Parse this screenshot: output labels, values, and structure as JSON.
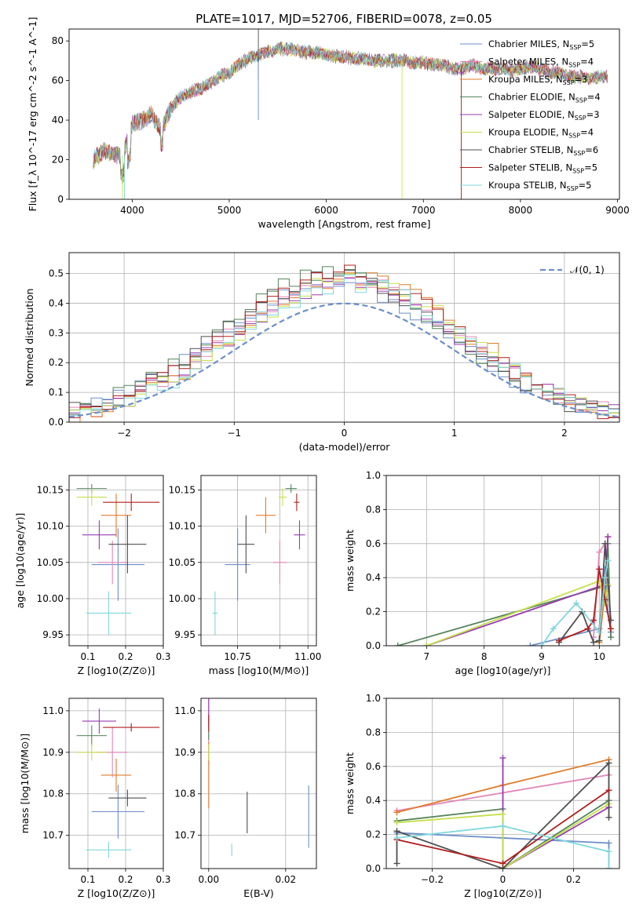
{
  "figure": {
    "title": "PLATE=1017, MJD=52706, FIBERID=0078, z=0.05",
    "legend_labels": [
      "Chabrier MILES, N_SSP=5",
      "Salpeter MILES, N_SSP=4",
      "Kroupa MILES, N_SSP=3",
      "Chabrier ELODIE, N_SSP=4",
      "Salpeter ELODIE, N_SSP=3",
      "Kroupa ELODIE, N_SSP=4",
      "Chabrier STELIB, N_SSP=6",
      "Salpeter STELIB, N_SSP=5",
      "Kroupa STELIB, N_SSP=5"
    ],
    "series_colors": [
      "#6c8fc9",
      "#e387b9",
      "#e07b2a",
      "#55835a",
      "#9a3bb0",
      "#c5e04c",
      "#4f4f4f",
      "#b01e1e",
      "#80d7dc"
    ],
    "normal_label": "𝒩(0, 1)",
    "normal_color": "#6c8fc9"
  },
  "chart_data": [
    {
      "type": "line",
      "name": "spectrum",
      "xlabel": "wavelength [Angstrom, rest frame]",
      "ylabel": "Flux [f_λ 10^-17 erg cm^-2 s^-1 A^-1]",
      "xlim": [
        3350,
        9020
      ],
      "ylim": [
        0,
        86
      ],
      "xticks": [
        4000,
        5000,
        6000,
        7000,
        8000,
        9000
      ],
      "yticks": [
        0,
        20,
        40,
        60,
        80
      ],
      "x": [
        3600,
        3700,
        3800,
        3900,
        4000,
        4100,
        4200,
        4300,
        4400,
        4500,
        4600,
        4700,
        4800,
        4900,
        5000,
        5100,
        5200,
        5300,
        5400,
        5500,
        5600,
        5700,
        5800,
        5900,
        6000,
        6100,
        6200,
        6300,
        6400,
        6500,
        6600,
        6700,
        6800,
        6900,
        7000,
        7100,
        7200,
        7300,
        7400,
        7500,
        7600,
        7700,
        7800,
        7900,
        8000,
        8100,
        8200,
        8300,
        8400,
        8500,
        8600,
        8700,
        8800,
        8900
      ],
      "y": [
        20,
        24,
        23,
        22,
        38,
        40,
        43,
        35,
        46,
        52,
        54,
        56,
        58,
        62,
        64,
        68,
        71,
        73,
        75,
        76,
        76,
        75,
        74,
        74,
        73,
        72,
        72,
        71,
        71,
        70,
        70,
        70,
        70,
        69,
        69,
        68,
        68,
        66,
        66,
        68,
        66,
        66,
        66,
        65,
        66,
        67,
        66,
        64,
        64,
        62,
        62,
        61,
        62,
        62
      ],
      "grid": false
    },
    {
      "type": "histogram",
      "name": "residuals",
      "xlabel": "(data-model)/error",
      "ylabel": "Normed distribution",
      "xlim": [
        -2.5,
        2.5
      ],
      "ylim": [
        0,
        0.57
      ],
      "xticks": [
        -2,
        -1,
        0,
        1,
        2
      ],
      "yticks": [
        0.0,
        0.1,
        0.2,
        0.3,
        0.4,
        0.5
      ],
      "grid": true,
      "legend": "top-right",
      "bin_width": 0.1
    },
    {
      "type": "scatter",
      "name": "age_vs_Z",
      "xlabel": "Z [log10(Z/Z⊙)]",
      "ylabel": "age  [log10(age/yr)]",
      "xlim": [
        0.05,
        0.3
      ],
      "ylim": [
        9.935,
        10.17
      ],
      "xticks": [
        0.1,
        0.2,
        0.3
      ],
      "yticks": [
        9.95,
        10.0,
        10.05,
        10.1,
        10.15
      ],
      "grid": true,
      "points": [
        {
          "x": 0.18,
          "y": 10.047,
          "xe": 0.07,
          "ye": 0.05
        },
        {
          "x": 0.165,
          "y": 10.05,
          "xe": 0.04,
          "ye": 0.03
        },
        {
          "x": 0.175,
          "y": 10.115,
          "xe": 0.04,
          "ye": 0.03
        },
        {
          "x": 0.11,
          "y": 10.152,
          "xe": 0.04,
          "ye": 0.006
        },
        {
          "x": 0.13,
          "y": 10.088,
          "xe": 0.045,
          "ye": 0.02
        },
        {
          "x": 0.11,
          "y": 10.14,
          "xe": 0.04,
          "ye": 0.012
        },
        {
          "x": 0.205,
          "y": 10.075,
          "xe": 0.05,
          "ye": 0.04
        },
        {
          "x": 0.215,
          "y": 10.133,
          "xe": 0.075,
          "ye": 0.012
        },
        {
          "x": 0.155,
          "y": 9.98,
          "xe": 0.06,
          "ye": 0.03
        }
      ]
    },
    {
      "type": "scatter",
      "name": "age_vs_mass",
      "xlabel": "mass [log10(M/M⊙)]",
      "ylabel": "",
      "xlim": [
        10.62,
        11.03
      ],
      "ylim": [
        9.935,
        10.17
      ],
      "xticks": [
        10.75,
        10.9,
        11.0
      ],
      "xticklabels": [
        "10.75",
        "",
        "11.00"
      ],
      "yticks": [
        9.95,
        10.0,
        10.05,
        10.1,
        10.15
      ],
      "grid": true,
      "points": [
        {
          "x": 10.75,
          "y": 10.047,
          "xe": 0.045,
          "ye": 0.05
        },
        {
          "x": 10.9,
          "y": 10.05,
          "xe": 0.025,
          "ye": 0.03
        },
        {
          "x": 10.85,
          "y": 10.115,
          "xe": 0.035,
          "ye": 0.025
        },
        {
          "x": 10.94,
          "y": 10.152,
          "xe": 0.02,
          "ye": 0.006
        },
        {
          "x": 10.97,
          "y": 10.088,
          "xe": 0.02,
          "ye": 0.02
        },
        {
          "x": 10.91,
          "y": 10.14,
          "xe": 0.015,
          "ye": 0.012
        },
        {
          "x": 10.78,
          "y": 10.075,
          "xe": 0.03,
          "ye": 0.04
        },
        {
          "x": 10.96,
          "y": 10.133,
          "xe": 0.01,
          "ye": 0.012
        },
        {
          "x": 10.67,
          "y": 9.98,
          "xe": 0.01,
          "ye": 0.03
        }
      ]
    },
    {
      "type": "line",
      "name": "massweight_vs_age",
      "xlabel": "age  [log10(age/yr)]",
      "ylabel": "mass weight",
      "xlim": [
        6.3,
        10.35
      ],
      "ylim": [
        0,
        1
      ],
      "xticks": [
        7,
        8,
        9,
        10
      ],
      "yticks": [
        0.0,
        0.2,
        0.4,
        0.6,
        0.8,
        1.0
      ],
      "grid": true,
      "series": [
        {
          "x": [
            8.8,
            10.0,
            10.1,
            10.15,
            10.2
          ],
          "y": [
            0.0,
            0.1,
            0.45,
            0.2,
            0.08
          ]
        },
        {
          "x": [
            9.9,
            10.0,
            10.1,
            10.15
          ],
          "y": [
            0.05,
            0.55,
            0.6,
            0.35
          ]
        },
        {
          "x": [
            10.0,
            10.1,
            10.15
          ],
          "y": [
            0.02,
            0.32,
            0.64
          ]
        },
        {
          "x": [
            6.5,
            10.1,
            10.15,
            10.2
          ],
          "y": [
            0.0,
            0.35,
            0.6,
            0.05
          ]
        },
        {
          "x": [
            7.0,
            10.1,
            10.15
          ],
          "y": [
            0.0,
            0.36,
            0.64
          ]
        },
        {
          "x": [
            7.0,
            10.0,
            10.1,
            10.15
          ],
          "y": [
            0.0,
            0.38,
            0.25,
            0.36
          ]
        },
        {
          "x": [
            9.3,
            9.7,
            9.9,
            10.0,
            10.1,
            10.2
          ],
          "y": [
            0.02,
            0.2,
            0.02,
            0.03,
            0.6,
            0.15
          ]
        },
        {
          "x": [
            9.3,
            9.8,
            9.9,
            10.0,
            10.1,
            10.2
          ],
          "y": [
            0.03,
            0.1,
            0.15,
            0.45,
            0.27,
            0.1
          ]
        },
        {
          "x": [
            9.0,
            9.2,
            9.6,
            10.0,
            10.1,
            10.15
          ],
          "y": [
            0.0,
            0.1,
            0.25,
            0.08,
            0.4,
            0.5
          ]
        }
      ]
    },
    {
      "type": "scatter",
      "name": "mass_vs_Z",
      "xlabel": "Z [log10(Z/Z⊙)]",
      "ylabel": "mass [log10(M/M⊙)]",
      "xlim": [
        0.05,
        0.3
      ],
      "ylim": [
        10.62,
        11.03
      ],
      "xticks": [
        0.1,
        0.2,
        0.3
      ],
      "yticks": [
        10.7,
        10.8,
        10.9,
        11.0
      ],
      "grid": true,
      "points": [
        {
          "x": 0.18,
          "y": 10.757,
          "xe": 0.07,
          "ye": 0.065
        },
        {
          "x": 0.165,
          "y": 10.9,
          "xe": 0.04,
          "ye": 0.06
        },
        {
          "x": 0.175,
          "y": 10.845,
          "xe": 0.04,
          "ye": 0.04
        },
        {
          "x": 0.11,
          "y": 10.94,
          "xe": 0.04,
          "ye": 0.025
        },
        {
          "x": 0.13,
          "y": 10.975,
          "xe": 0.045,
          "ye": 0.03
        },
        {
          "x": 0.11,
          "y": 10.9,
          "xe": 0.04,
          "ye": 0.02
        },
        {
          "x": 0.205,
          "y": 10.79,
          "xe": 0.05,
          "ye": 0.02
        },
        {
          "x": 0.215,
          "y": 10.96,
          "xe": 0.075,
          "ye": 0.01
        },
        {
          "x": 0.155,
          "y": 10.665,
          "xe": 0.06,
          "ye": 0.02
        }
      ]
    },
    {
      "type": "scatter",
      "name": "mass_vs_ebv",
      "xlabel": "E(B-V)",
      "ylabel": "",
      "xlim": [
        -0.002,
        0.028
      ],
      "ylim": [
        10.62,
        11.03
      ],
      "xticks": [
        0.0,
        0.02
      ],
      "yticks": [
        10.7,
        10.8,
        10.9,
        11.0
      ],
      "grid": true,
      "points": [
        {
          "x": 0.026,
          "y": 10.745,
          "xe": 0,
          "ye": 0.075
        },
        {
          "x": 0.0,
          "y": 10.95,
          "xe": 0,
          "ye": 0.08
        },
        {
          "x": 0.0,
          "y": 10.845,
          "xe": 0,
          "ye": 0.08
        },
        {
          "x": 0.0,
          "y": 10.96,
          "xe": 0,
          "ye": 0.03
        },
        {
          "x": 0.0,
          "y": 11.0,
          "xe": 0,
          "ye": 0.03
        },
        {
          "x": 0.0,
          "y": 10.9,
          "xe": 0,
          "ye": 0.02
        },
        {
          "x": 0.01,
          "y": 10.755,
          "xe": 0,
          "ye": 0.05
        },
        {
          "x": 0.0,
          "y": 10.97,
          "xe": 0,
          "ye": 0.02
        },
        {
          "x": 0.006,
          "y": 10.665,
          "xe": 0,
          "ye": 0.015
        }
      ]
    },
    {
      "type": "line",
      "name": "massweight_vs_Z",
      "xlabel": "Z [log10(Z/Z⊙)]",
      "ylabel": "mass weight",
      "xlim": [
        -0.33,
        0.33
      ],
      "ylim": [
        0,
        1
      ],
      "xticks": [
        -0.2,
        0.0,
        0.2
      ],
      "yticks": [
        0.0,
        0.2,
        0.4,
        0.6,
        0.8,
        1.0
      ],
      "grid": true,
      "series": [
        {
          "x": [
            -0.3,
            0.3,
            0.3
          ],
          "y": [
            0.21,
            0.15,
            0.0
          ]
        },
        {
          "x": [
            -0.3,
            0.3
          ],
          "y": [
            0.34,
            0.55
          ]
        },
        {
          "x": [
            -0.3,
            0.0,
            0.3
          ],
          "y": [
            0.33,
            0.49,
            0.64
          ]
        },
        {
          "x": [
            -0.3,
            0.0,
            0.0,
            0.3
          ],
          "y": [
            0.28,
            0.35,
            0.0,
            0.4
          ]
        },
        {
          "x": [
            0.0,
            0.0,
            0.3
          ],
          "y": [
            0.65,
            0.0,
            0.36
          ]
        },
        {
          "x": [
            -0.3,
            0.0,
            0.0,
            0.3
          ],
          "y": [
            0.27,
            0.32,
            0.0,
            0.38
          ]
        },
        {
          "x": [
            -0.3,
            -0.3,
            0.0,
            0.3,
            0.3
          ],
          "y": [
            0.03,
            0.22,
            0.0,
            0.62,
            0.3
          ]
        },
        {
          "x": [
            -0.3,
            0.0,
            0.3
          ],
          "y": [
            0.17,
            0.03,
            0.46
          ]
        },
        {
          "x": [
            -0.3,
            0.0,
            0.3,
            0.3
          ],
          "y": [
            0.18,
            0.25,
            0.1,
            0.0
          ]
        }
      ]
    }
  ]
}
